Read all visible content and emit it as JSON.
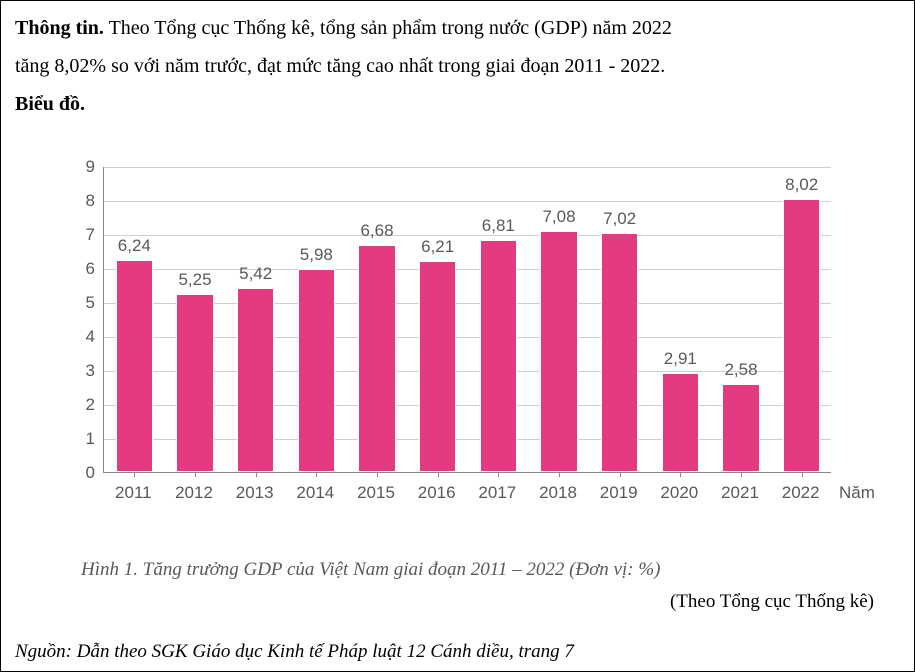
{
  "intro": {
    "label_bold": "Thông tin.",
    "text1": " Theo Tổng cục Thống kê, tổng sản phẩm trong nước (GDP) năm 2022",
    "text2": "tăng 8,02% so với năm trước, đạt mức tăng cao nhất trong giai đoạn 2011 - 2022.",
    "chart_label": "Biểu đồ."
  },
  "chart": {
    "type": "bar",
    "categories": [
      "2011",
      "2012",
      "2013",
      "2014",
      "2015",
      "2016",
      "2017",
      "2018",
      "2019",
      "2020",
      "2021",
      "2022"
    ],
    "values": [
      6.24,
      5.25,
      5.42,
      5.98,
      6.68,
      6.21,
      6.81,
      7.08,
      7.02,
      2.91,
      2.58,
      8.02
    ],
    "value_labels": [
      "6,24",
      "5,25",
      "5,42",
      "5,98",
      "6,68",
      "6,21",
      "6,81",
      "7,08",
      "7,02",
      "2,91",
      "2,58",
      "8,02"
    ],
    "bar_color": "#e43a82",
    "bar_border": "#ffffff",
    "background_color": "#ffffff",
    "grid_color": "#cfcfcf",
    "axis_color": "#888888",
    "text_color": "#595959",
    "ymin": 0,
    "ymax": 9,
    "ytick_step": 1,
    "yticks": [
      "0",
      "1",
      "2",
      "3",
      "4",
      "5",
      "6",
      "7",
      "8",
      "9"
    ],
    "x_axis_title": "Năm",
    "tick_fontsize": 17,
    "value_fontsize": 17,
    "bar_width_ratio": 0.62
  },
  "captions": {
    "fig_caption": "Hình 1. Tăng trưởng GDP của Việt Nam giai đoạn 2011 – 2022 (Đơn vị: %)",
    "source_inline": "(Theo Tổng cục Thống kê)",
    "footnote": "Nguồn: Dẫn theo SGK Giáo dục Kinh tế Pháp luật 12 Cánh diều, trang 7"
  }
}
